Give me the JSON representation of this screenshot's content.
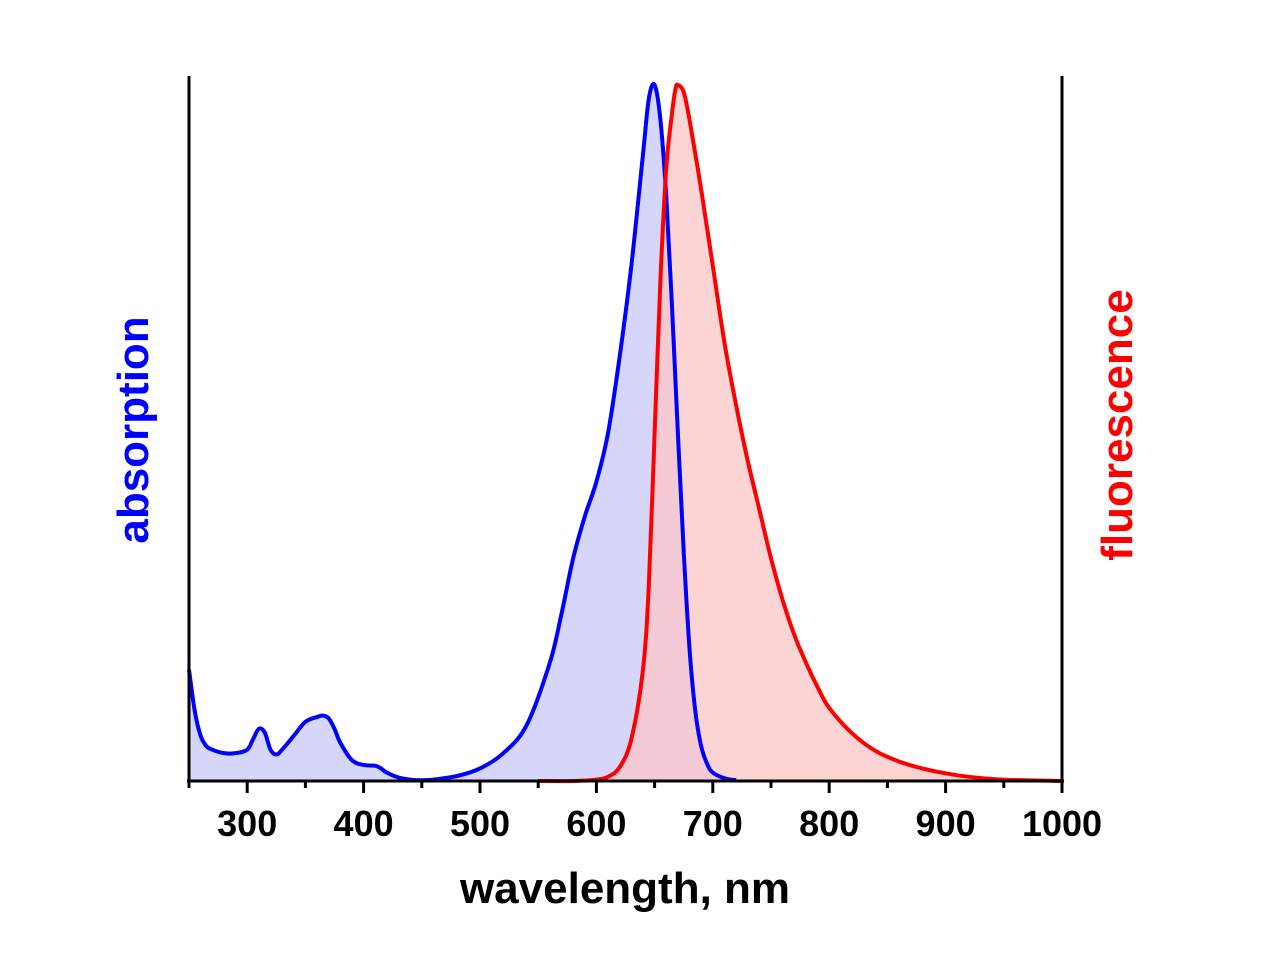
{
  "chart_data": {
    "type": "area",
    "xlabel": "wavelength, nm",
    "ylabel_left": "absorption",
    "ylabel_right": "fluorescence",
    "xlim": [
      250,
      1000
    ],
    "ylim": [
      0,
      1
    ],
    "xticks": [
      300,
      400,
      500,
      600,
      700,
      800,
      900,
      1000
    ],
    "grid": false,
    "series": [
      {
        "key": "absorption",
        "color": "#0000ff",
        "fill": "#c8c8f8",
        "x": [
          250,
          255,
          260,
          265,
          270,
          280,
          290,
          300,
          305,
          310,
          315,
          320,
          325,
          330,
          340,
          350,
          360,
          365,
          370,
          375,
          380,
          390,
          400,
          410,
          415,
          420,
          430,
          440,
          450,
          460,
          480,
          500,
          520,
          540,
          560,
          570,
          580,
          590,
          600,
          610,
          620,
          630,
          640,
          645,
          650,
          655,
          660,
          665,
          670,
          675,
          680,
          685,
          690,
          695,
          700,
          710,
          720
        ],
        "y": [
          0.16,
          0.1,
          0.065,
          0.05,
          0.045,
          0.04,
          0.04,
          0.045,
          0.06,
          0.075,
          0.07,
          0.045,
          0.038,
          0.045,
          0.065,
          0.085,
          0.092,
          0.094,
          0.09,
          0.075,
          0.055,
          0.03,
          0.023,
          0.022,
          0.018,
          0.012,
          0.005,
          0.002,
          0.001,
          0.002,
          0.007,
          0.018,
          0.04,
          0.08,
          0.17,
          0.24,
          0.32,
          0.38,
          0.43,
          0.5,
          0.61,
          0.74,
          0.9,
          0.98,
          1.0,
          0.95,
          0.84,
          0.68,
          0.5,
          0.33,
          0.19,
          0.1,
          0.05,
          0.025,
          0.012,
          0.004,
          0.001
        ]
      },
      {
        "key": "fluorescence",
        "color": "#ff0000",
        "fill": "#fcc6c6",
        "x": [
          550,
          580,
          600,
          610,
          620,
          630,
          640,
          645,
          650,
          655,
          660,
          665,
          668,
          670,
          675,
          680,
          690,
          700,
          710,
          720,
          730,
          740,
          750,
          760,
          770,
          780,
          790,
          800,
          820,
          840,
          860,
          880,
          900,
          920,
          950,
          1000
        ],
        "y": [
          0.0,
          0.0,
          0.002,
          0.006,
          0.02,
          0.06,
          0.16,
          0.28,
          0.5,
          0.72,
          0.88,
          0.96,
          0.995,
          1.0,
          0.99,
          0.95,
          0.85,
          0.74,
          0.63,
          0.54,
          0.46,
          0.39,
          0.32,
          0.26,
          0.21,
          0.17,
          0.135,
          0.105,
          0.068,
          0.043,
          0.028,
          0.018,
          0.011,
          0.006,
          0.002,
          0.0
        ]
      }
    ]
  }
}
